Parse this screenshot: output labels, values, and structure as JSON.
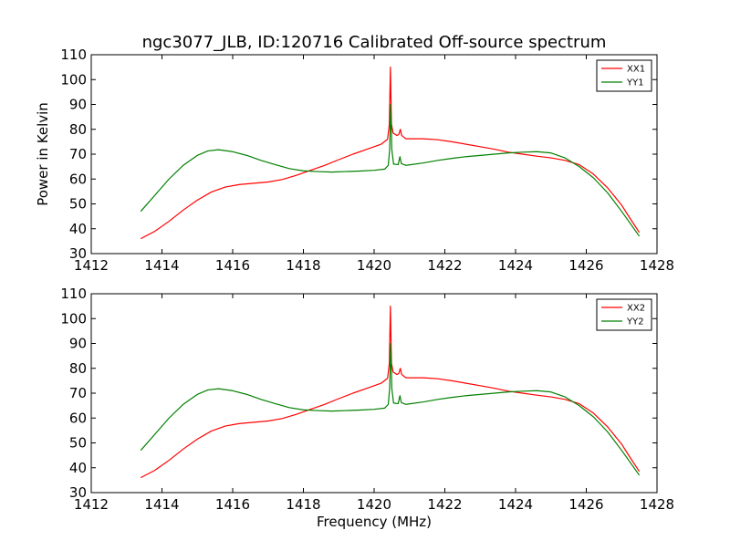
{
  "figure": {
    "title": "ngc3077_JLB, ID:120716 Calibrated Off-source spectrum"
  },
  "chart_data": [
    {
      "type": "line",
      "ylabel": "Power in Kelvin",
      "xlabel": "",
      "xlim": [
        1412,
        1428
      ],
      "ylim": [
        30,
        110
      ],
      "xticks": [
        1412,
        1414,
        1416,
        1418,
        1420,
        1422,
        1424,
        1426,
        1428
      ],
      "yticks": [
        30,
        40,
        50,
        60,
        70,
        80,
        90,
        100,
        110
      ],
      "grid": false,
      "legend": "top-right",
      "series": [
        {
          "name": "XX1",
          "color": "#ff0000",
          "points": [
            [
              1413.4,
              36
            ],
            [
              1413.8,
              39
            ],
            [
              1414.2,
              43
            ],
            [
              1414.6,
              47.5
            ],
            [
              1415.0,
              51.5
            ],
            [
              1415.4,
              54.8
            ],
            [
              1415.8,
              56.8
            ],
            [
              1416.2,
              57.8
            ],
            [
              1416.6,
              58.3
            ],
            [
              1417.0,
              58.8
            ],
            [
              1417.4,
              59.8
            ],
            [
              1417.8,
              61.5
            ],
            [
              1418.2,
              63.5
            ],
            [
              1418.6,
              65.5
            ],
            [
              1419.0,
              67.8
            ],
            [
              1419.4,
              70
            ],
            [
              1419.8,
              72
            ],
            [
              1420.2,
              74
            ],
            [
              1420.38,
              76
            ],
            [
              1420.43,
              82
            ],
            [
              1420.46,
              105
            ],
            [
              1420.49,
              82
            ],
            [
              1420.54,
              78.5
            ],
            [
              1420.65,
              77.5
            ],
            [
              1420.7,
              78
            ],
            [
              1420.74,
              80
            ],
            [
              1420.78,
              77.5
            ],
            [
              1420.9,
              76.2
            ],
            [
              1421.4,
              76.2
            ],
            [
              1421.8,
              75.8
            ],
            [
              1422.2,
              75
            ],
            [
              1422.6,
              74
            ],
            [
              1423.0,
              73
            ],
            [
              1423.4,
              72
            ],
            [
              1423.8,
              70.8
            ],
            [
              1424.2,
              70
            ],
            [
              1424.6,
              69.2
            ],
            [
              1425.0,
              68.5
            ],
            [
              1425.4,
              67.5
            ],
            [
              1425.8,
              65.8
            ],
            [
              1426.2,
              62
            ],
            [
              1426.6,
              56.5
            ],
            [
              1427.0,
              49.5
            ],
            [
              1427.2,
              45
            ],
            [
              1427.5,
              38.5
            ]
          ]
        },
        {
          "name": "YY1",
          "color": "#008000",
          "points": [
            [
              1413.4,
              47
            ],
            [
              1413.8,
              53.5
            ],
            [
              1414.2,
              60
            ],
            [
              1414.6,
              65.5
            ],
            [
              1415.0,
              69.5
            ],
            [
              1415.3,
              71.3
            ],
            [
              1415.6,
              71.8
            ],
            [
              1416.0,
              71
            ],
            [
              1416.4,
              69.5
            ],
            [
              1416.8,
              67.5
            ],
            [
              1417.2,
              65.8
            ],
            [
              1417.6,
              64.2
            ],
            [
              1418.0,
              63.3
            ],
            [
              1418.4,
              63
            ],
            [
              1418.8,
              62.8
            ],
            [
              1419.2,
              63
            ],
            [
              1419.6,
              63.2
            ],
            [
              1420.0,
              63.5
            ],
            [
              1420.3,
              64
            ],
            [
              1420.4,
              65.5
            ],
            [
              1420.44,
              72
            ],
            [
              1420.47,
              90
            ],
            [
              1420.5,
              72
            ],
            [
              1420.55,
              66
            ],
            [
              1420.68,
              65.8
            ],
            [
              1420.73,
              69
            ],
            [
              1420.77,
              66.2
            ],
            [
              1420.9,
              65.5
            ],
            [
              1421.4,
              66.5
            ],
            [
              1421.8,
              67.5
            ],
            [
              1422.2,
              68.3
            ],
            [
              1422.6,
              69
            ],
            [
              1423.0,
              69.5
            ],
            [
              1423.4,
              70
            ],
            [
              1423.8,
              70.5
            ],
            [
              1424.2,
              70.8
            ],
            [
              1424.6,
              71
            ],
            [
              1425.0,
              70.5
            ],
            [
              1425.4,
              68.5
            ],
            [
              1425.8,
              65
            ],
            [
              1426.2,
              60.5
            ],
            [
              1426.6,
              54.5
            ],
            [
              1427.0,
              47
            ],
            [
              1427.2,
              43
            ],
            [
              1427.5,
              37
            ]
          ]
        }
      ]
    },
    {
      "type": "line",
      "ylabel": "",
      "xlabel": "Frequency (MHz)",
      "xlim": [
        1412,
        1428
      ],
      "ylim": [
        30,
        110
      ],
      "xticks": [
        1412,
        1414,
        1416,
        1418,
        1420,
        1422,
        1424,
        1426,
        1428
      ],
      "yticks": [
        30,
        40,
        50,
        60,
        70,
        80,
        90,
        100,
        110
      ],
      "grid": false,
      "legend": "top-right",
      "series": [
        {
          "name": "XX2",
          "color": "#ff0000",
          "points": [
            [
              1413.4,
              36
            ],
            [
              1413.8,
              39
            ],
            [
              1414.2,
              43
            ],
            [
              1414.6,
              47.5
            ],
            [
              1415.0,
              51.5
            ],
            [
              1415.4,
              54.8
            ],
            [
              1415.8,
              56.8
            ],
            [
              1416.2,
              57.8
            ],
            [
              1416.6,
              58.3
            ],
            [
              1417.0,
              58.8
            ],
            [
              1417.4,
              59.8
            ],
            [
              1417.8,
              61.5
            ],
            [
              1418.2,
              63.5
            ],
            [
              1418.6,
              65.5
            ],
            [
              1419.0,
              67.8
            ],
            [
              1419.4,
              70
            ],
            [
              1419.8,
              72
            ],
            [
              1420.2,
              74
            ],
            [
              1420.38,
              76
            ],
            [
              1420.43,
              82
            ],
            [
              1420.46,
              105
            ],
            [
              1420.49,
              82
            ],
            [
              1420.54,
              78.5
            ],
            [
              1420.65,
              77.5
            ],
            [
              1420.7,
              78
            ],
            [
              1420.74,
              80
            ],
            [
              1420.78,
              77.5
            ],
            [
              1420.9,
              76.2
            ],
            [
              1421.4,
              76.2
            ],
            [
              1421.8,
              75.8
            ],
            [
              1422.2,
              75
            ],
            [
              1422.6,
              74
            ],
            [
              1423.0,
              73
            ],
            [
              1423.4,
              72
            ],
            [
              1423.8,
              70.8
            ],
            [
              1424.2,
              70
            ],
            [
              1424.6,
              69.2
            ],
            [
              1425.0,
              68.5
            ],
            [
              1425.4,
              67.5
            ],
            [
              1425.8,
              65.8
            ],
            [
              1426.2,
              62
            ],
            [
              1426.6,
              56.5
            ],
            [
              1427.0,
              49.5
            ],
            [
              1427.2,
              45
            ],
            [
              1427.5,
              38.5
            ]
          ]
        },
        {
          "name": "YY2",
          "color": "#008000",
          "points": [
            [
              1413.4,
              47
            ],
            [
              1413.8,
              53.5
            ],
            [
              1414.2,
              60
            ],
            [
              1414.6,
              65.5
            ],
            [
              1415.0,
              69.5
            ],
            [
              1415.3,
              71.3
            ],
            [
              1415.6,
              71.8
            ],
            [
              1416.0,
              71
            ],
            [
              1416.4,
              69.5
            ],
            [
              1416.8,
              67.5
            ],
            [
              1417.2,
              65.8
            ],
            [
              1417.6,
              64.2
            ],
            [
              1418.0,
              63.3
            ],
            [
              1418.4,
              63
            ],
            [
              1418.8,
              62.8
            ],
            [
              1419.2,
              63
            ],
            [
              1419.6,
              63.2
            ],
            [
              1420.0,
              63.5
            ],
            [
              1420.3,
              64
            ],
            [
              1420.4,
              65.5
            ],
            [
              1420.44,
              72
            ],
            [
              1420.47,
              90
            ],
            [
              1420.5,
              72
            ],
            [
              1420.55,
              66
            ],
            [
              1420.68,
              65.8
            ],
            [
              1420.73,
              69
            ],
            [
              1420.77,
              66.2
            ],
            [
              1420.9,
              65.5
            ],
            [
              1421.4,
              66.5
            ],
            [
              1421.8,
              67.5
            ],
            [
              1422.2,
              68.3
            ],
            [
              1422.6,
              69
            ],
            [
              1423.0,
              69.5
            ],
            [
              1423.4,
              70
            ],
            [
              1423.8,
              70.5
            ],
            [
              1424.2,
              70.8
            ],
            [
              1424.6,
              71
            ],
            [
              1425.0,
              70.5
            ],
            [
              1425.4,
              68.5
            ],
            [
              1425.8,
              65
            ],
            [
              1426.2,
              60.5
            ],
            [
              1426.6,
              54.5
            ],
            [
              1427.0,
              47
            ],
            [
              1427.2,
              43
            ],
            [
              1427.5,
              37
            ]
          ]
        }
      ]
    }
  ]
}
